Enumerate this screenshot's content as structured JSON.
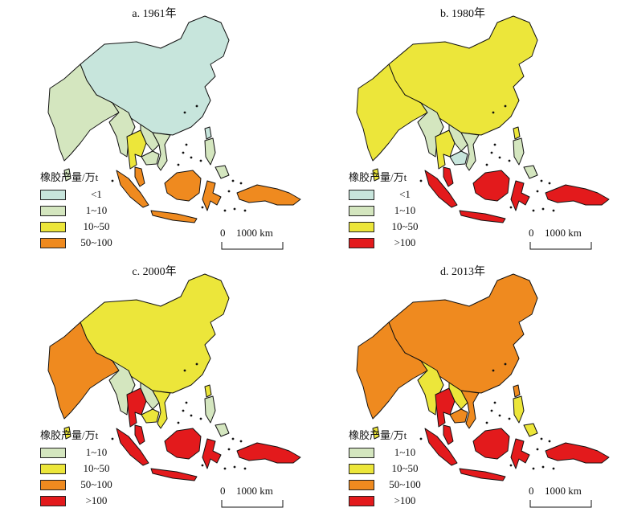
{
  "legend_title": "橡胶产量/万t",
  "classes": [
    {
      "label": "<1",
      "color": "#c7e5dc"
    },
    {
      "label": "1~10",
      "color": "#d4e6bf"
    },
    {
      "label": "10~50",
      "color": "#ece63a"
    },
    {
      "label": "50~100",
      "color": "#ef8a1f"
    },
    {
      "label": ">100",
      "color": "#e31a1c"
    }
  ],
  "scale_zero": "0",
  "scale_label": "1000 km",
  "panels": [
    {
      "title": "a. 1961年",
      "legend_classes": [
        0,
        1,
        2,
        3
      ],
      "fills": {
        "china": 0,
        "india": 1,
        "srilanka": 1,
        "myanmar": 1,
        "thailand": 2,
        "laos": 1,
        "vietnam": 1,
        "cambodia": 1,
        "malaysia": 3,
        "sumatra": 3,
        "borneo": 3,
        "java": 3,
        "sulawesi": 3,
        "newguinea": 3,
        "philippines": 1,
        "taiwan": 0,
        "mindanao": 1
      }
    },
    {
      "title": "b. 1980年",
      "legend_classes": [
        0,
        1,
        2,
        4
      ],
      "fills": {
        "china": 2,
        "india": 2,
        "srilanka": 2,
        "myanmar": 1,
        "thailand": 2,
        "laos": 1,
        "vietnam": 1,
        "cambodia": 0,
        "malaysia": 4,
        "sumatra": 4,
        "borneo": 4,
        "java": 4,
        "sulawesi": 4,
        "newguinea": 4,
        "philippines": 1,
        "taiwan": 2,
        "mindanao": 1
      }
    },
    {
      "title": "c. 2000年",
      "legend_classes": [
        1,
        2,
        3,
        4
      ],
      "fills": {
        "china": 2,
        "india": 3,
        "srilanka": 2,
        "myanmar": 1,
        "thailand": 4,
        "laos": 1,
        "vietnam": 2,
        "cambodia": 2,
        "malaysia": 4,
        "sumatra": 4,
        "borneo": 4,
        "java": 4,
        "sulawesi": 4,
        "newguinea": 4,
        "philippines": 1,
        "taiwan": 2,
        "mindanao": 1
      }
    },
    {
      "title": "d. 2013年",
      "legend_classes": [
        1,
        2,
        3,
        4
      ],
      "fills": {
        "china": 3,
        "india": 3,
        "srilanka": 2,
        "myanmar": 2,
        "thailand": 4,
        "laos": 2,
        "vietnam": 3,
        "cambodia": 3,
        "malaysia": 4,
        "sumatra": 4,
        "borneo": 4,
        "java": 4,
        "sulawesi": 4,
        "newguinea": 4,
        "philippines": 2,
        "taiwan": 3,
        "mindanao": 2
      }
    }
  ]
}
